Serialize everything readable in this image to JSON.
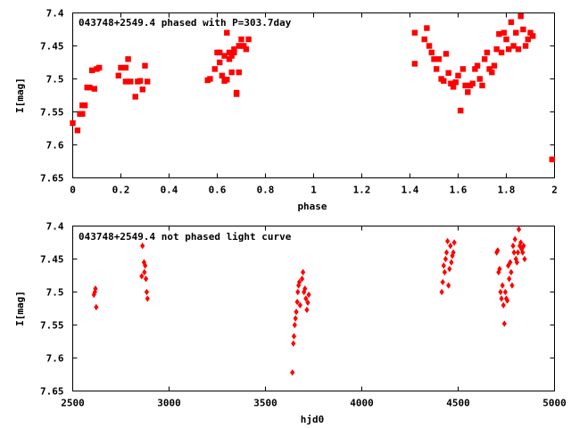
{
  "chart_data": [
    {
      "type": "scatter",
      "title": "043748+2549.4 phased with P=303.7day",
      "xlabel": "phase",
      "ylabel": "I[mag]",
      "xlim": [
        0,
        2
      ],
      "ylim": [
        7.65,
        7.4
      ],
      "y_inverted": true,
      "xticks": [
        "0",
        "0.2",
        "0.4",
        "0.6",
        "0.8",
        "1",
        "1.2",
        "1.4",
        "1.6",
        "1.8",
        "2"
      ],
      "yticks": [
        "7.4",
        "7.45",
        "7.5",
        "7.55",
        "7.6",
        "7.65"
      ],
      "grid": false,
      "marker_color": "#ff0000",
      "x": [
        0.0,
        0.02,
        0.03,
        0.04,
        0.04,
        0.05,
        0.05,
        0.06,
        0.07,
        0.08,
        0.09,
        0.1,
        0.11,
        0.19,
        0.2,
        0.22,
        0.22,
        0.23,
        0.24,
        0.26,
        0.27,
        0.28,
        0.29,
        0.3,
        0.31,
        0.56,
        0.57,
        0.59,
        0.6,
        0.61,
        0.61,
        0.62,
        0.63,
        0.63,
        0.64,
        0.64,
        0.65,
        0.65,
        0.66,
        0.66,
        0.67,
        0.67,
        0.68,
        0.68,
        0.69,
        0.69,
        0.7,
        0.7,
        0.71,
        0.72,
        0.73,
        1.42,
        1.42,
        1.46,
        1.47,
        1.48,
        1.49,
        1.5,
        1.51,
        1.52,
        1.53,
        1.54,
        1.55,
        1.56,
        1.57,
        1.58,
        1.59,
        1.6,
        1.61,
        1.62,
        1.63,
        1.64,
        1.65,
        1.66,
        1.67,
        1.68,
        1.69,
        1.7,
        1.71,
        1.72,
        1.73,
        1.74,
        1.75,
        1.76,
        1.77,
        1.78,
        1.79,
        1.8,
        1.81,
        1.82,
        1.83,
        1.84,
        1.85,
        1.86,
        1.87,
        1.88,
        1.89,
        1.9,
        1.91,
        1.99
      ],
      "y": [
        7.567,
        7.578,
        7.553,
        7.553,
        7.54,
        7.54,
        7.54,
        7.513,
        7.513,
        7.487,
        7.515,
        7.485,
        7.483,
        7.495,
        7.483,
        7.483,
        7.504,
        7.47,
        7.504,
        7.527,
        7.504,
        7.503,
        7.516,
        7.48,
        7.504,
        7.502,
        7.5,
        7.485,
        7.46,
        7.475,
        7.46,
        7.495,
        7.465,
        7.503,
        7.43,
        7.501,
        7.46,
        7.47,
        7.465,
        7.49,
        7.46,
        7.455,
        7.523,
        7.521,
        7.45,
        7.49,
        7.44,
        7.45,
        7.45,
        7.455,
        7.44,
        7.43,
        7.477,
        7.44,
        7.423,
        7.45,
        7.46,
        7.47,
        7.485,
        7.47,
        7.5,
        7.503,
        7.462,
        7.491,
        7.507,
        7.512,
        7.505,
        7.495,
        7.548,
        7.485,
        7.51,
        7.52,
        7.51,
        7.507,
        7.485,
        7.48,
        7.5,
        7.51,
        7.47,
        7.46,
        7.485,
        7.49,
        7.48,
        7.455,
        7.432,
        7.46,
        7.43,
        7.44,
        7.455,
        7.414,
        7.45,
        7.43,
        7.455,
        7.405,
        7.425,
        7.45,
        7.44,
        7.43,
        7.435,
        7.622
      ]
    },
    {
      "type": "scatter",
      "title": "043748+2549.4 not phased light curve",
      "xlabel": "hjd0",
      "ylabel": "I[mag]",
      "xlim": [
        2500,
        5000
      ],
      "ylim": [
        7.65,
        7.4
      ],
      "y_inverted": true,
      "xticks": [
        "2500",
        "3000",
        "3500",
        "4000",
        "4500",
        "5000"
      ],
      "yticks": [
        "7.4",
        "7.45",
        "7.5",
        "7.55",
        "7.6",
        "7.65"
      ],
      "grid": false,
      "marker_color": "#ff0000",
      "x": [
        2610,
        2615,
        2618,
        2622,
        2858,
        2862,
        2870,
        2872,
        2876,
        2880,
        2884,
        2888,
        3640,
        3645,
        3648,
        3652,
        3656,
        3660,
        3665,
        3668,
        3672,
        3676,
        3680,
        3690,
        3695,
        3700,
        3705,
        3710,
        3715,
        3720,
        3725,
        4415,
        4420,
        4425,
        4430,
        4435,
        4440,
        4445,
        4450,
        4455,
        4460,
        4465,
        4470,
        4475,
        4480,
        4700,
        4705,
        4710,
        4715,
        4720,
        4725,
        4730,
        4735,
        4740,
        4745,
        4750,
        4755,
        4760,
        4765,
        4770,
        4775,
        4780,
        4785,
        4790,
        4795,
        4800,
        4805,
        4810,
        4815,
        4820,
        4825,
        4830,
        4835,
        4840,
        4845
      ],
      "y": [
        7.504,
        7.5,
        7.495,
        7.523,
        7.476,
        7.43,
        7.455,
        7.47,
        7.46,
        7.48,
        7.5,
        7.51,
        7.622,
        7.578,
        7.567,
        7.55,
        7.54,
        7.53,
        7.515,
        7.5,
        7.49,
        7.485,
        7.52,
        7.48,
        7.47,
        7.5,
        7.495,
        7.51,
        7.527,
        7.516,
        7.504,
        7.5,
        7.485,
        7.46,
        7.47,
        7.45,
        7.44,
        7.423,
        7.49,
        7.465,
        7.43,
        7.455,
        7.445,
        7.44,
        7.425,
        7.44,
        7.437,
        7.47,
        7.465,
        7.5,
        7.51,
        7.49,
        7.52,
        7.548,
        7.5,
        7.51,
        7.513,
        7.46,
        7.48,
        7.455,
        7.47,
        7.49,
        7.43,
        7.44,
        7.42,
        7.45,
        7.455,
        7.44,
        7.405,
        7.43,
        7.425,
        7.435,
        7.44,
        7.43,
        7.45
      ]
    }
  ]
}
